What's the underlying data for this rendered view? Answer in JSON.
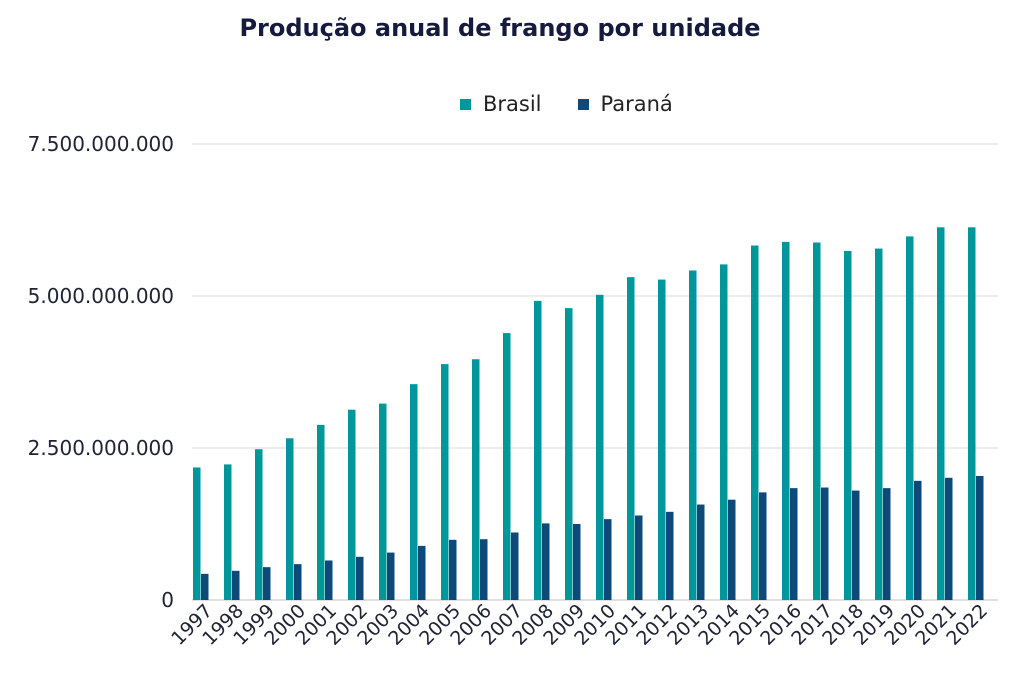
{
  "chart_data": {
    "type": "bar",
    "title": "Produção anual de frango por unidade",
    "xlabel": "",
    "ylabel": "",
    "categories": [
      "1997",
      "1998",
      "1999",
      "2000",
      "2001",
      "2002",
      "2003",
      "2004",
      "2005",
      "2006",
      "2007",
      "2008",
      "2009",
      "2010",
      "2011",
      "2012",
      "2013",
      "2014",
      "2015",
      "2016",
      "2017",
      "2018",
      "2019",
      "2020",
      "2021",
      "2022"
    ],
    "series": [
      {
        "name": "Brasil",
        "color": "#00979b",
        "values": [
          2180000000,
          2230000000,
          2480000000,
          2660000000,
          2880000000,
          3130000000,
          3230000000,
          3550000000,
          3880000000,
          3960000000,
          4390000000,
          4920000000,
          4800000000,
          5020000000,
          5310000000,
          5270000000,
          5420000000,
          5520000000,
          5830000000,
          5890000000,
          5880000000,
          5740000000,
          5780000000,
          5980000000,
          6130000000,
          6130000000
        ]
      },
      {
        "name": "Paraná",
        "color": "#0d4a7a",
        "values": [
          430000000,
          480000000,
          540000000,
          590000000,
          650000000,
          710000000,
          780000000,
          890000000,
          990000000,
          1000000000,
          1110000000,
          1260000000,
          1250000000,
          1330000000,
          1390000000,
          1450000000,
          1570000000,
          1650000000,
          1770000000,
          1840000000,
          1850000000,
          1800000000,
          1840000000,
          1960000000,
          2010000000,
          2040000000
        ]
      }
    ],
    "ylim": [
      0,
      7500000000
    ],
    "yticks": [
      0,
      2500000000,
      5000000000,
      7500000000
    ],
    "ytick_labels": [
      "0",
      "2.500.000.000",
      "5.000.000.000",
      "7.500.000.000"
    ],
    "legend_position": "top-center",
    "grid": true
  }
}
